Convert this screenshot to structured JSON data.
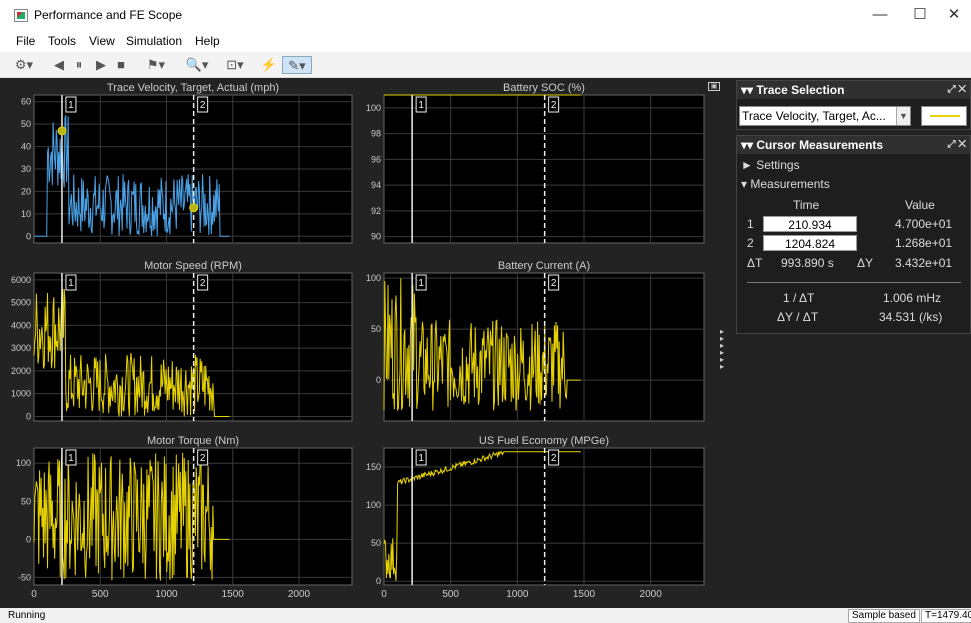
{
  "window": {
    "title": "Performance and FE Scope",
    "minimize": "—",
    "maximize": "☐",
    "close": "✕"
  },
  "menu": [
    "File",
    "Tools",
    "View",
    "Simulation",
    "Help"
  ],
  "toolbar_icons": [
    "settings-icon",
    "step-back-icon",
    "pause-icon",
    "step-forward-icon",
    "stop-icon",
    "highlight-icon",
    "zoom-icon",
    "fit-icon",
    "trigger-icon",
    "cursor-measure-icon"
  ],
  "plots": [
    {
      "title": "Trace Velocity, Target, Actual (mph)",
      "yticks": [
        "60",
        "50",
        "40",
        "30",
        "20",
        "10",
        "0"
      ],
      "ylim": [
        -3,
        63
      ],
      "xticks": [],
      "cursor1_label": "1",
      "cursor2_label": "2"
    },
    {
      "title": "Battery SOC (%)",
      "yticks": [
        "100",
        "98",
        "96",
        "94",
        "92",
        "90"
      ],
      "ylim": [
        89.5,
        101
      ],
      "xticks": [],
      "cursor1_label": "1",
      "cursor2_label": "2"
    },
    {
      "title": "Motor Speed (RPM)",
      "yticks": [
        "6000",
        "5000",
        "4000",
        "3000",
        "2000",
        "1000",
        "0"
      ],
      "ylim": [
        -200,
        6300
      ],
      "xticks": [],
      "cursor1_label": "1",
      "cursor2_label": "2"
    },
    {
      "title": "Battery Current (A)",
      "yticks": [
        "100",
        "50",
        "0"
      ],
      "ylim": [
        -40,
        105
      ],
      "xticks": [],
      "cursor1_label": "1",
      "cursor2_label": "2"
    },
    {
      "title": "Motor Torque (Nm)",
      "yticks": [
        "100",
        "50",
        "0",
        "-50"
      ],
      "ylim": [
        -60,
        120
      ],
      "xticks": [
        "0",
        "500",
        "1000",
        "1500",
        "2000"
      ],
      "cursor1_label": "1",
      "cursor2_label": "2"
    },
    {
      "title": "US Fuel Economy (MPGe)",
      "yticks": [
        "150",
        "100",
        "50",
        "0"
      ],
      "ylim": [
        -5,
        175
      ],
      "xticks": [
        "0",
        "500",
        "1000",
        "1500",
        "2000"
      ],
      "cursor1_label": "1",
      "cursor2_label": "2"
    }
  ],
  "chart_data": {
    "type": "line",
    "xlim": [
      0,
      2400
    ],
    "cursor1_x": 210.934,
    "cursor2_x": 1204.824,
    "series_color_velocity": "#4aa3e8",
    "series_color_other": "#e6d200",
    "markers": [
      {
        "x": 210.934,
        "y": 47
      },
      {
        "x": 1204.824,
        "y": 12.68
      }
    ]
  },
  "trace_selection": {
    "title": "Trace Selection",
    "value": "Trace Velocity, Target, Ac...",
    "line_color": "#e6d200"
  },
  "cursor_measurements": {
    "title": "Cursor Measurements",
    "settings_label": "► Settings",
    "measurements_label": "▾ Measurements",
    "time_header": "Time",
    "value_header": "Value",
    "row1_label": "1",
    "row1_time": "210.934",
    "row1_value": "4.700e+01",
    "row2_label": "2",
    "row2_time": "1204.824",
    "row2_value": "1.268e+01",
    "dt_label": "ΔT",
    "dt_value": "993.890 s",
    "dy_label": "ΔY",
    "dy_value": "3.432e+01",
    "inv_dt_label": "1 / ΔT",
    "inv_dt_value": "1.006 mHz",
    "dy_dt_label": "ΔY / ΔT",
    "dy_dt_value": "34.531 (/ks)"
  },
  "status": {
    "text": "Running",
    "mode": "Sample based",
    "time": "T=1479.40"
  }
}
